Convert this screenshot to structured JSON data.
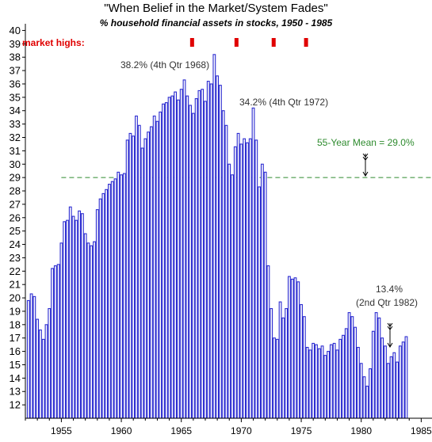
{
  "colors": {
    "bar": "#2a2ad0",
    "mean_line": "#2e8b2e",
    "market_high_marker": "#e00000",
    "axis": "#000000"
  },
  "highs_label": "market highs:",
  "annotations": {
    "peak_1968": "38.2% (4th Qtr 1968)",
    "peak_1972": "34.2% (4th Qtr 1972)",
    "mean": "55-Year Mean = 29.0%",
    "low_1982_value": "13.4%",
    "low_1982_period": "(2nd Qtr 1982)"
  },
  "chart_data": {
    "type": "bar",
    "title": "\"When Belief in the Market/System Fades\"",
    "subtitle": "% household financial assets in stocks, 1950 - 1985",
    "x_start": 1952.25,
    "x_step": 0.25,
    "xlim": [
      1952,
      1985.9
    ],
    "ylim": [
      11,
      40.5
    ],
    "x_ticks": [
      1955,
      1960,
      1965,
      1970,
      1975,
      1980,
      1985
    ],
    "y_ticks": [
      12,
      13,
      14,
      15,
      16,
      17,
      18,
      19,
      20,
      21,
      22,
      23,
      24,
      25,
      26,
      27,
      28,
      29,
      30,
      31,
      32,
      33,
      34,
      35,
      36,
      37,
      38,
      39,
      40
    ],
    "mean": 29.0,
    "market_highs": [
      1965.9,
      1969.6,
      1972.7,
      1975.4
    ],
    "values": [
      19.8,
      20.3,
      20.1,
      18.4,
      17.6,
      16.9,
      18.0,
      19.2,
      22.2,
      22.4,
      22.5,
      24.1,
      25.7,
      25.8,
      26.8,
      26.1,
      25.8,
      26.5,
      26.3,
      24.8,
      24.1,
      23.9,
      24.2,
      26.6,
      27.4,
      27.8,
      28.1,
      28.5,
      28.7,
      28.9,
      29.4,
      29.2,
      29.3,
      31.8,
      32.3,
      32.1,
      33.6,
      32.9,
      31.2,
      31.9,
      32.4,
      32.8,
      33.6,
      33.2,
      33.9,
      34.5,
      34.6,
      35.0,
      35.1,
      35.4,
      34.8,
      35.6,
      36.3,
      35.1,
      34.4,
      33.8,
      34.9,
      35.5,
      35.6,
      34.7,
      36.2,
      36.0,
      38.2,
      36.6,
      35.9,
      34.0,
      32.9,
      30.0,
      29.2,
      31.3,
      32.3,
      31.5,
      31.9,
      31.6,
      31.9,
      34.2,
      31.8,
      28.3,
      30.0,
      29.4,
      22.4,
      19.2,
      17.0,
      16.9,
      19.7,
      18.5,
      19.2,
      21.6,
      21.4,
      21.5,
      21.2,
      19.5,
      18.6,
      16.3,
      16.1,
      16.6,
      16.5,
      16.2,
      16.4,
      15.7,
      16.0,
      16.5,
      16.6,
      16.1,
      16.9,
      17.2,
      17.7,
      18.9,
      18.6,
      17.8,
      16.3,
      15.1,
      14.1,
      13.4,
      14.7,
      17.5,
      18.9,
      18.5,
      17.0,
      16.4,
      15.1,
      15.6,
      15.9,
      15.2,
      16.4,
      16.7,
      17.1
    ]
  }
}
